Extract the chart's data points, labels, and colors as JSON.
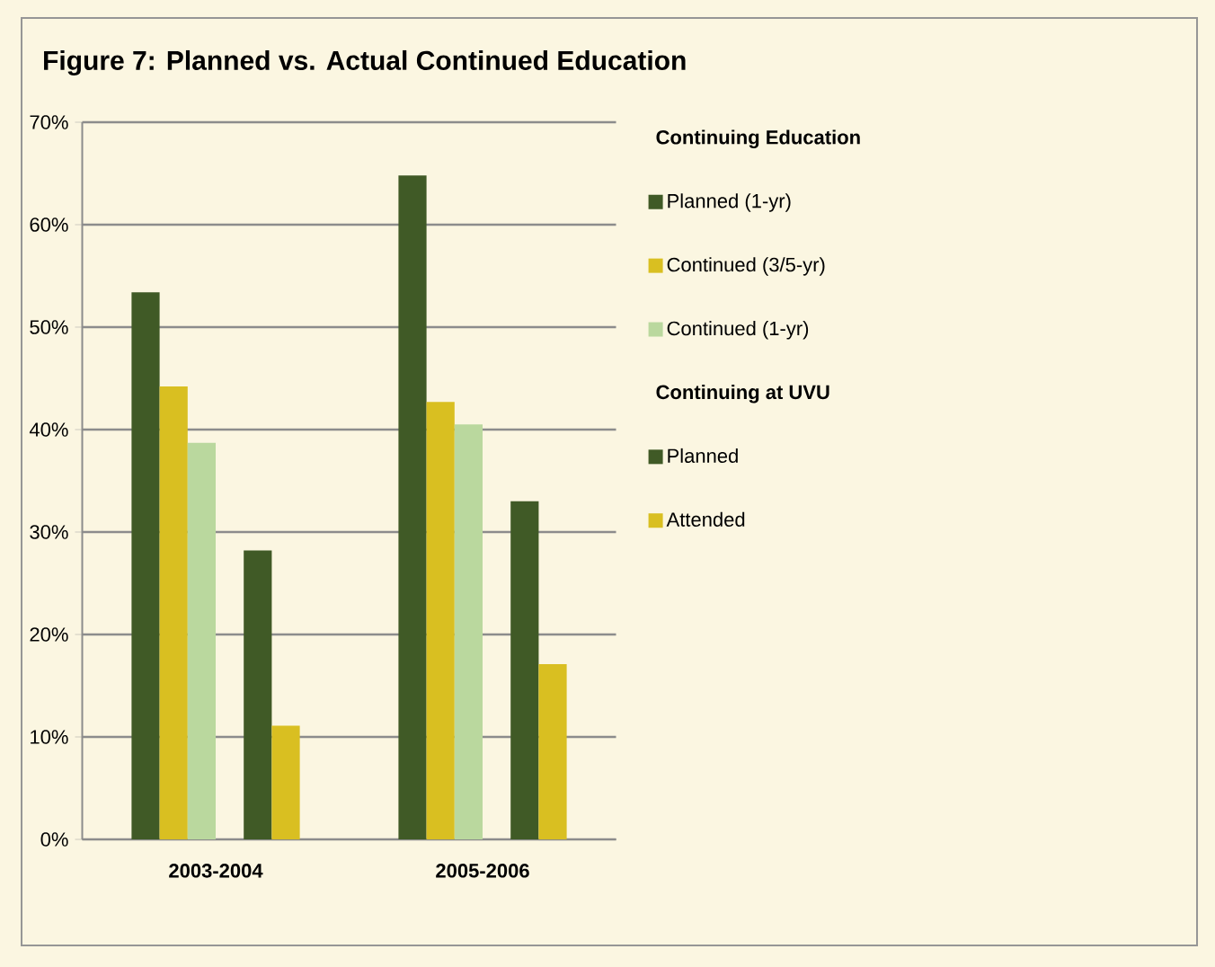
{
  "chart_data": {
    "type": "bar",
    "title": "Figure 7: Planned vs. Actual Continued Education",
    "legend_title": "Continuing Education",
    "categories": [
      "2003-2004",
      "2005-2006"
    ],
    "series": [
      {
        "name": "Planned (1-yr)",
        "color": "#405a26",
        "values": [
          53.4,
          64.8
        ]
      },
      {
        "name": "Continued (3/5-yr)",
        "color": "#d9bf21",
        "values": [
          44.2,
          42.7
        ]
      },
      {
        "name": "Continued (1-yr)",
        "color": "#bad89e",
        "values": [
          38.7,
          40.5
        ]
      },
      {
        "name": "Continuing at UVU",
        "values": [
          null,
          null
        ]
      },
      {
        "name": "Planned",
        "color": "#405a26",
        "values": [
          28.2,
          33.0
        ]
      },
      {
        "name": "Attended",
        "color": "#d9bf21",
        "values": [
          11.1,
          17.1
        ]
      }
    ],
    "ylim": [
      0,
      70
    ],
    "yticks": [
      {
        "value": 0,
        "label": "0%"
      },
      {
        "value": 10,
        "label": "10%"
      },
      {
        "value": 20,
        "label": "20%"
      },
      {
        "value": 30,
        "label": "30%"
      },
      {
        "value": 40,
        "label": "40%"
      },
      {
        "value": 50,
        "label": "50%"
      },
      {
        "value": 60,
        "label": "60%"
      },
      {
        "value": 70,
        "label": "70%"
      }
    ],
    "grid": "y",
    "legend": "right"
  }
}
